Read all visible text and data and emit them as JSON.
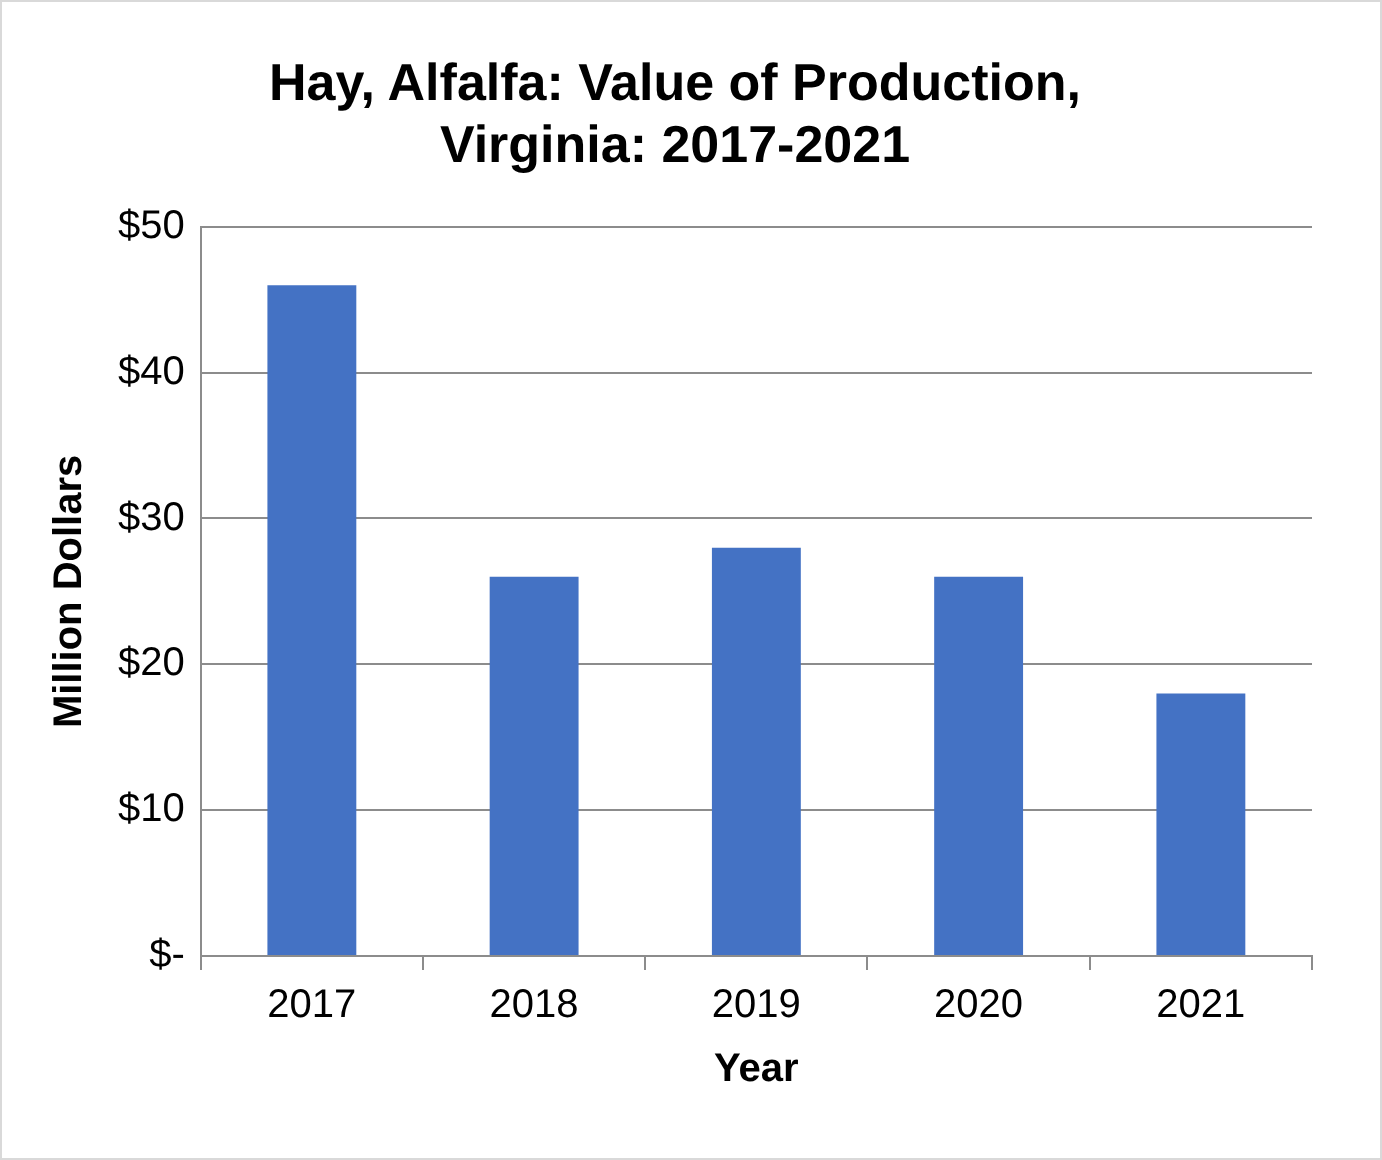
{
  "chart_data": {
    "type": "bar",
    "title": "Hay, Alfalfa: Value of Production, Virginia: 2017-2021",
    "xlabel": "Year",
    "ylabel": "Million Dollars",
    "categories": [
      "2017",
      "2018",
      "2019",
      "2020",
      "2021"
    ],
    "values": [
      46,
      26,
      28,
      26,
      18
    ],
    "color": "#4472c4",
    "ylim": [
      0,
      50
    ],
    "yticks": [
      {
        "value": 0,
        "label": "$-"
      },
      {
        "value": 10,
        "label": "$10"
      },
      {
        "value": 20,
        "label": "$20"
      },
      {
        "value": 30,
        "label": "$30"
      },
      {
        "value": 40,
        "label": "$40"
      },
      {
        "value": 50,
        "label": "$50"
      }
    ],
    "grid": "y",
    "legend": false
  }
}
